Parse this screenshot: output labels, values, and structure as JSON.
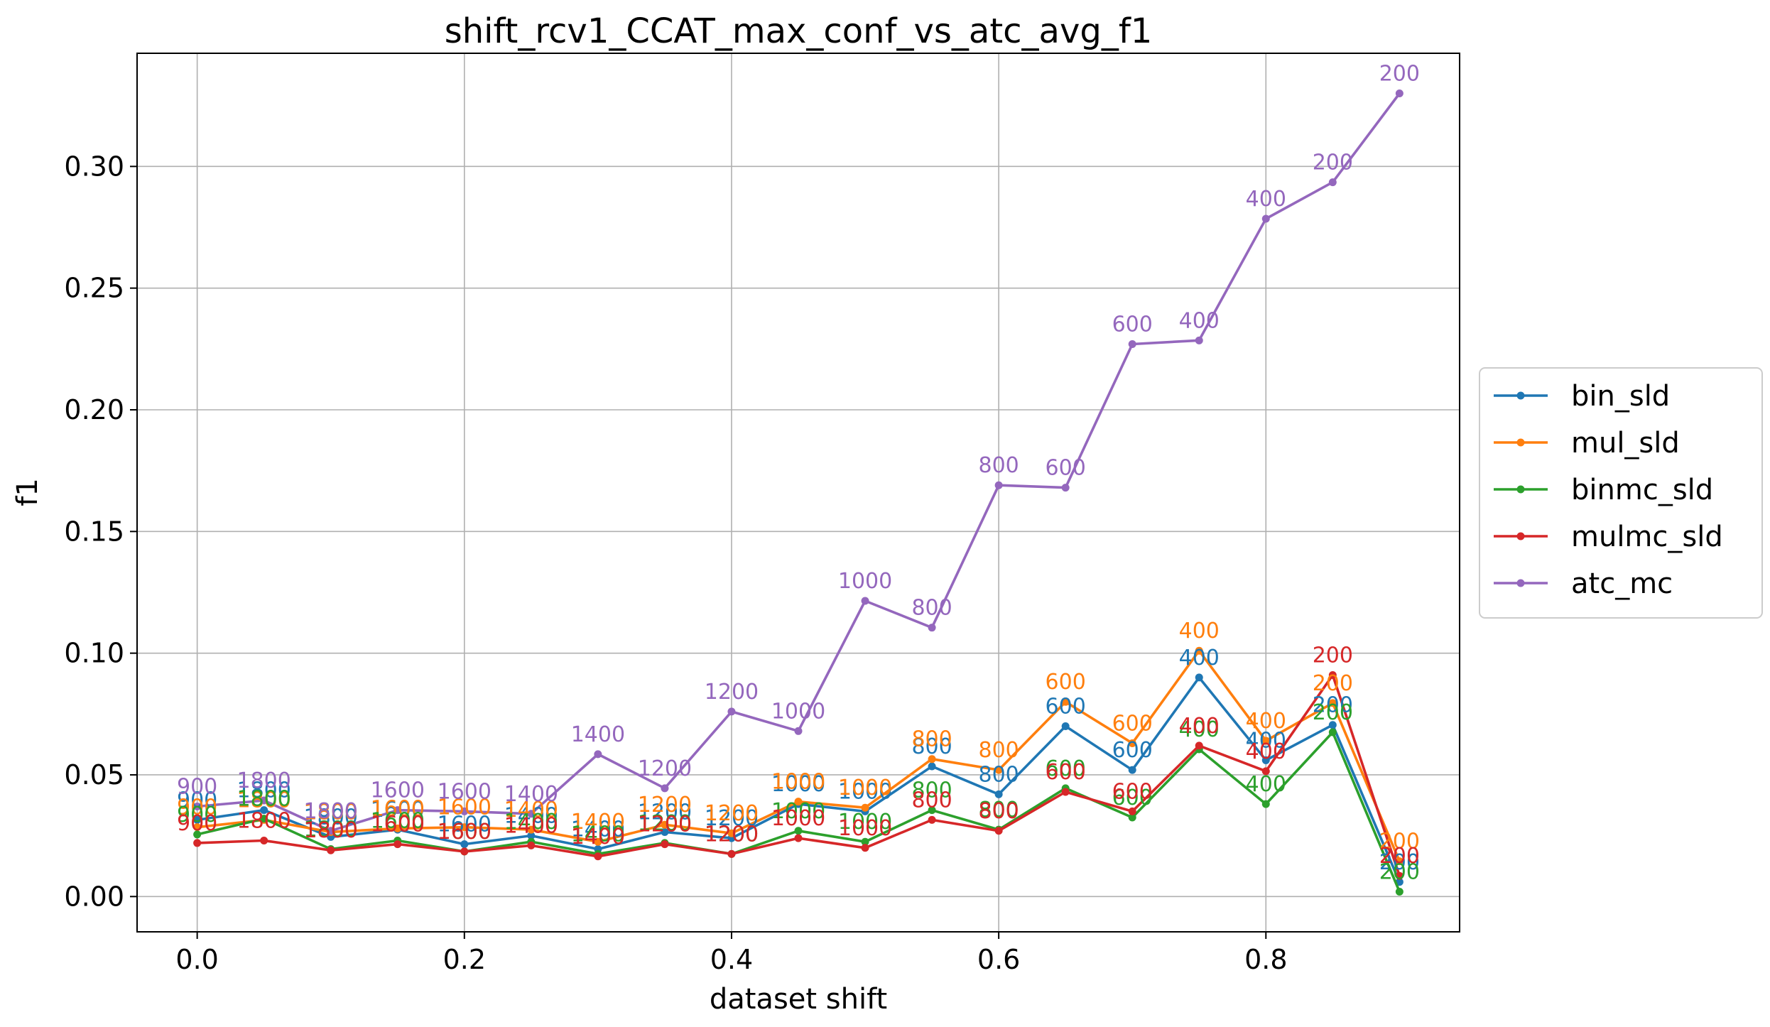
{
  "chart_data": {
    "type": "line",
    "title": "shift_rcv1_CCAT_max_conf_vs_atc_avg_f1",
    "xlabel": "dataset shift",
    "ylabel": "f1",
    "xlim": [
      -0.045,
      0.945
    ],
    "ylim": [
      -0.0145,
      0.3465
    ],
    "x_ticks": [
      "0.0",
      "0.2",
      "0.4",
      "0.6",
      "0.8"
    ],
    "x_tick_values": [
      0.0,
      0.2,
      0.4,
      0.6,
      0.8
    ],
    "y_ticks": [
      "0.00",
      "0.05",
      "0.10",
      "0.15",
      "0.20",
      "0.25",
      "0.30"
    ],
    "y_tick_values": [
      0.0,
      0.05,
      0.1,
      0.15,
      0.2,
      0.25,
      0.3
    ],
    "grid": true,
    "legend_position": "center-right-outside",
    "x": [
      0.0,
      0.05,
      0.1,
      0.15,
      0.2,
      0.25,
      0.3,
      0.35,
      0.4,
      0.45,
      0.5,
      0.55,
      0.6,
      0.65,
      0.7,
      0.75,
      0.8,
      0.85,
      0.9
    ],
    "point_labels": [
      "900",
      "1800",
      "1800",
      "1600",
      "1600",
      "1400",
      "1400",
      "1200",
      "1200",
      "1000",
      "1000",
      "800",
      "800",
      "600",
      "600",
      "400",
      "400",
      "200",
      "200"
    ],
    "series": [
      {
        "name": "bin_sld",
        "color": "#1f77b4",
        "values": [
          0.0315,
          0.0355,
          0.0245,
          0.0275,
          0.0215,
          0.025,
          0.0195,
          0.0265,
          0.024,
          0.038,
          0.035,
          0.0535,
          0.042,
          0.07,
          0.052,
          0.09,
          0.056,
          0.0705,
          0.006
        ]
      },
      {
        "name": "mul_sld",
        "color": "#ff7f0e",
        "values": [
          0.0285,
          0.0315,
          0.0265,
          0.028,
          0.0285,
          0.0275,
          0.0225,
          0.0295,
          0.026,
          0.039,
          0.0365,
          0.0565,
          0.052,
          0.08,
          0.063,
          0.101,
          0.064,
          0.0795,
          0.0145
        ]
      },
      {
        "name": "binmc_sld",
        "color": "#2ca02c",
        "values": [
          0.0255,
          0.032,
          0.0195,
          0.023,
          0.0185,
          0.0225,
          0.0175,
          0.022,
          0.0175,
          0.027,
          0.0225,
          0.0355,
          0.0275,
          0.0445,
          0.0325,
          0.0605,
          0.038,
          0.0675,
          0.002
        ]
      },
      {
        "name": "mulmc_sld",
        "color": "#d62728",
        "values": [
          0.022,
          0.023,
          0.019,
          0.0215,
          0.0185,
          0.021,
          0.0165,
          0.0215,
          0.0175,
          0.024,
          0.02,
          0.0315,
          0.027,
          0.043,
          0.035,
          0.062,
          0.0515,
          0.091,
          0.0085
        ]
      },
      {
        "name": "atc_mc",
        "color": "#9467bd",
        "values": [
          0.037,
          0.0395,
          0.027,
          0.0355,
          0.035,
          0.034,
          0.0585,
          0.0445,
          0.076,
          0.068,
          0.1215,
          0.1105,
          0.169,
          0.168,
          0.227,
          0.2285,
          0.2785,
          0.2935,
          0.33
        ]
      }
    ]
  }
}
